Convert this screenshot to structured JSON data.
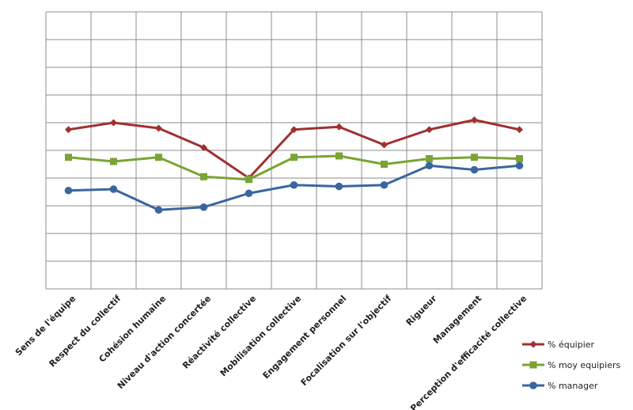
{
  "chart_data": {
    "type": "line",
    "title": "",
    "xlabel": "",
    "ylabel": "",
    "ylim": [
      0,
      100
    ],
    "grid": true,
    "y_ticks_visible": false,
    "legend_position": "bottom-right",
    "categories": [
      "Sens de l'équipe",
      "Respect du collectif",
      "Cohésion humaine",
      "Niveau d'action concertée",
      "Réactivité collective",
      "Mobilisation  collective",
      "Engagement personnel",
      "Focalisation sur l'objectif",
      "Rigueur",
      "Management",
      "Perception d'efficacité collective"
    ],
    "series": [
      {
        "name": "% équipier",
        "color": "#a03030",
        "marker": "diamond",
        "values": [
          57.5,
          60.0,
          58.0,
          51.0,
          40.0,
          57.5,
          58.5,
          52.0,
          57.5,
          61.0,
          57.5
        ]
      },
      {
        "name": "% moy equipiers",
        "color": "#7aa434",
        "marker": "square",
        "values": [
          47.5,
          46.0,
          47.5,
          40.5,
          39.5,
          47.5,
          48.0,
          45.0,
          47.0,
          47.5,
          47.0
        ]
      },
      {
        "name": "% manager",
        "color": "#3a66a0",
        "marker": "circle",
        "values": [
          35.5,
          36.0,
          28.5,
          29.5,
          34.5,
          37.5,
          37.0,
          37.5,
          44.5,
          43.0,
          44.5
        ]
      }
    ]
  }
}
